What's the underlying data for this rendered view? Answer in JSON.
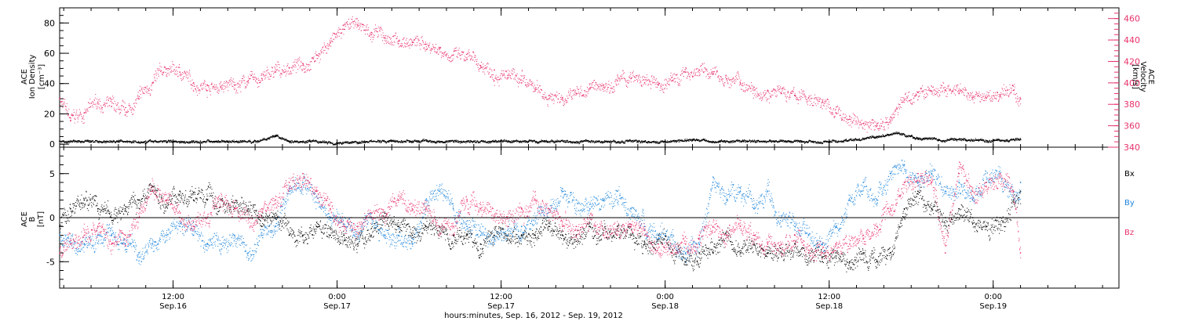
{
  "chart_data": [
    {
      "type": "scatter",
      "panel": "top",
      "xlabel": "hours:minutes, Sep. 16, 2012 - Sep. 19, 2012",
      "x_ticks": [
        {
          "hours": 12,
          "time": "12:00",
          "date": "Sep.16"
        },
        {
          "hours": 24,
          "time": "0:00",
          "date": "Sep.17"
        },
        {
          "hours": 36,
          "time": "12:00",
          "date": "Sep.17"
        },
        {
          "hours": 48,
          "time": "0:00",
          "date": "Sep.18"
        },
        {
          "hours": 60,
          "time": "12:00",
          "date": "Sep.18"
        },
        {
          "hours": 72,
          "time": "0:00",
          "date": "Sep.19"
        }
      ],
      "xlim_hours": [
        3.7,
        81.2
      ],
      "left_axis": {
        "label_lines": [
          "ACE",
          "Ion Density",
          "[cm⁻³]"
        ],
        "ylim": [
          -2,
          90
        ],
        "ticks": [
          0,
          20,
          40,
          60,
          80
        ],
        "color": "#000000"
      },
      "right_axis": {
        "label_lines": [
          "ACE",
          "Velocity",
          "[km/s]"
        ],
        "ylim": [
          340,
          470
        ],
        "ticks": [
          340,
          360,
          380,
          400,
          420,
          440,
          460
        ],
        "color": "#e8336b"
      },
      "series": [
        {
          "name": "Ion Density",
          "axis": "left",
          "color": "#000000",
          "x_hours": [
            3.7,
            6,
            8,
            10,
            12,
            14,
            16,
            18,
            19.5,
            20.5,
            22,
            24,
            26,
            28,
            30,
            32,
            34,
            36,
            38,
            40,
            42,
            44,
            46,
            48,
            50,
            52,
            54,
            56,
            58,
            60,
            62,
            63.5,
            65,
            66.5,
            68,
            70,
            72,
            74
          ],
          "values": [
            2,
            2,
            2,
            2,
            2,
            2,
            2,
            2,
            5,
            2,
            2,
            1,
            2,
            2,
            2,
            2,
            2,
            2,
            2,
            2,
            2,
            2,
            2,
            2,
            3,
            2,
            2,
            2,
            2,
            2,
            3,
            5,
            7,
            4,
            3,
            3,
            3,
            3
          ]
        },
        {
          "name": "Velocity",
          "axis": "right",
          "color": "#e8336b",
          "x_hours": [
            3.7,
            4.5,
            5.5,
            6.5,
            7.5,
            8.5,
            9.5,
            10.5,
            11.5,
            12.5,
            13.5,
            14.5,
            15.5,
            16.5,
            17.5,
            18.5,
            19.5,
            20.5,
            21.5,
            22.5,
            23.5,
            24.5,
            25.5,
            26.5,
            27.5,
            28.5,
            29.5,
            30.5,
            31.5,
            32.5,
            33.5,
            34.5,
            35.5,
            36.5,
            37.5,
            38.5,
            39.5,
            40.5,
            41.5,
            42.5,
            43.5,
            44.5,
            45.5,
            46.5,
            47.5,
            48.5,
            49.5,
            50.5,
            51.5,
            52.5,
            53.5,
            54.5,
            55.5,
            56.5,
            57.5,
            58.5,
            59.5,
            60.5,
            61.5,
            62.5,
            63.5,
            64.5,
            65.5,
            66.5,
            67.5,
            68.5,
            69.5,
            70.5,
            71.5,
            72.5,
            73.5,
            74
          ],
          "values": [
            385,
            365,
            372,
            382,
            378,
            370,
            385,
            400,
            413,
            410,
            400,
            398,
            396,
            398,
            402,
            404,
            410,
            414,
            418,
            426,
            438,
            450,
            454,
            447,
            442,
            439,
            438,
            436,
            432,
            426,
            422,
            416,
            412,
            405,
            400,
            394,
            388,
            386,
            390,
            395,
            398,
            402,
            404,
            400,
            398,
            402,
            410,
            412,
            408,
            404,
            400,
            396,
            393,
            390,
            388,
            386,
            382,
            372,
            366,
            362,
            360,
            368,
            384,
            391,
            392,
            393,
            390,
            386,
            386,
            389,
            393,
            385
          ]
        }
      ]
    },
    {
      "type": "scatter",
      "panel": "bottom",
      "xlim_hours": [
        3.7,
        81.2
      ],
      "left_axis": {
        "label_lines": [
          "ACE",
          "B",
          "[nT]"
        ],
        "ylim": [
          -8,
          8
        ],
        "ticks": [
          -5,
          0,
          5
        ],
        "color": "#000000"
      },
      "zero_line": 0,
      "series": [
        {
          "name": "Bx",
          "color": "#000000",
          "x_hours": [
            3.7,
            4.5,
            5.5,
            6.5,
            7.5,
            8.5,
            9.5,
            10.5,
            11.5,
            12.5,
            13.5,
            14.5,
            15.5,
            16.5,
            17.5,
            18.5,
            19.5,
            20.5,
            21.5,
            22.5,
            23.5,
            24.5,
            25.5,
            26.5,
            27.5,
            28.5,
            29.5,
            30.5,
            31.5,
            32.5,
            33.5,
            34.5,
            35.5,
            36.5,
            37.5,
            38.5,
            39.5,
            40.5,
            41.5,
            42.5,
            43.5,
            44.5,
            45.5,
            46.5,
            47.5,
            48.5,
            49.5,
            50.5,
            51.5,
            52.5,
            53.5,
            54.5,
            55.5,
            56.5,
            57.5,
            58.5,
            59.5,
            60.5,
            61.5,
            62.5,
            63.5,
            64.5,
            65.5,
            66.5,
            67.5,
            68.5,
            69.5,
            70.5,
            71.5,
            72.5,
            73.5,
            74
          ],
          "values": [
            -1,
            1,
            2,
            1,
            0,
            1,
            2,
            3,
            2,
            3,
            2,
            2,
            2,
            1,
            1,
            -1,
            0,
            -2,
            -2,
            -1,
            -2,
            -2,
            -3,
            -2,
            0,
            -1,
            -2,
            -1,
            -1,
            -2,
            -2,
            -3,
            -2,
            -2,
            -2,
            -2,
            -1,
            -2,
            -2,
            -1,
            -2,
            -1,
            -2,
            -3,
            -2,
            -4,
            -5,
            -4,
            -4,
            -2,
            -4,
            -3,
            -4,
            -4,
            -3,
            -4,
            -5,
            -4,
            -5,
            -4,
            -5,
            -4,
            1,
            3,
            1,
            0,
            1,
            0,
            -1,
            0,
            2,
            3
          ]
        },
        {
          "name": "By",
          "color": "#1f86dc",
          "x_hours": [
            3.7,
            4.5,
            5.5,
            6.5,
            7.5,
            8.5,
            9.5,
            10.5,
            11.5,
            12.5,
            13.5,
            14.5,
            15.5,
            16.5,
            17.5,
            18.5,
            19.5,
            20.5,
            21.5,
            22.5,
            23.5,
            24.5,
            25.5,
            26.5,
            27.5,
            28.5,
            29.5,
            30.5,
            31.5,
            32.5,
            33.5,
            34.5,
            35.5,
            36.5,
            37.5,
            38.5,
            39.5,
            40.5,
            41.5,
            42.5,
            43.5,
            44.5,
            45.5,
            46.5,
            47.5,
            48.5,
            49.5,
            50.5,
            51.5,
            52.5,
            53.5,
            54.5,
            55.5,
            56.5,
            57.5,
            58.5,
            59.5,
            60.5,
            61.5,
            62.5,
            63.5,
            64.5,
            65.5,
            66.5,
            67.5,
            68.5,
            69.5,
            70.5,
            71.5,
            72.5,
            73.5,
            74
          ],
          "values": [
            -2,
            -3,
            -3,
            -2,
            -2,
            -3,
            -4,
            -3,
            -2,
            -1,
            -2,
            -3,
            -3,
            -2,
            -4,
            -2,
            -1,
            3,
            4,
            3,
            0,
            -1,
            -1,
            0,
            -2,
            -2,
            -3,
            2,
            3,
            1,
            -1,
            -2,
            -3,
            -2,
            -1,
            0,
            1,
            3,
            2,
            1,
            2,
            3,
            1,
            -1,
            -2,
            -3,
            -4,
            -3,
            4,
            2,
            3,
            1,
            3,
            0,
            -1,
            -2,
            -3,
            -1,
            2,
            4,
            2,
            5,
            6,
            4,
            5,
            3,
            4,
            2,
            4,
            5,
            3,
            4
          ]
        },
        {
          "name": "Bz",
          "color": "#e8336b",
          "x_hours": [
            3.7,
            4.5,
            5.5,
            6.5,
            7.5,
            8.5,
            9.5,
            10.5,
            11.5,
            12.5,
            13.5,
            14.5,
            15.5,
            16.5,
            17.5,
            18.5,
            19.5,
            20.5,
            21.5,
            22.5,
            23.5,
            24.5,
            25.5,
            26.5,
            27.5,
            28.5,
            29.5,
            30.5,
            31.5,
            32.5,
            33.5,
            34.5,
            35.5,
            36.5,
            37.5,
            38.5,
            39.5,
            40.5,
            41.5,
            42.5,
            43.5,
            44.5,
            45.5,
            46.5,
            47.5,
            48.5,
            49.5,
            50.5,
            51.5,
            52.5,
            53.5,
            54.5,
            55.5,
            56.5,
            57.5,
            58.5,
            59.5,
            60.5,
            61.5,
            62.5,
            63.5,
            64.5,
            65.5,
            66.5,
            67.5,
            68.5,
            69.5,
            70.5,
            71.5,
            72.5,
            73.5,
            74
          ],
          "values": [
            -4,
            -3,
            -2,
            -1,
            -3,
            -2,
            0,
            3,
            2,
            0,
            -1,
            0,
            2,
            1,
            0,
            1,
            2,
            4,
            5,
            3,
            1,
            -1,
            -1,
            0,
            0,
            2,
            1,
            1,
            0,
            -1,
            2,
            1,
            0,
            -1,
            1,
            2,
            1,
            -1,
            -1,
            0,
            -2,
            -2,
            -1,
            -2,
            -3,
            -4,
            -3,
            -2,
            -1,
            -2,
            -1,
            -2,
            -3,
            -3,
            -2,
            -4,
            -4,
            -3,
            -3,
            -2,
            -1,
            1,
            4,
            5,
            4,
            -4,
            5,
            3,
            4,
            5,
            3,
            -4
          ]
        }
      ],
      "legend": [
        "Bx",
        "By",
        "Bz"
      ],
      "legend_placement": "right"
    }
  ]
}
